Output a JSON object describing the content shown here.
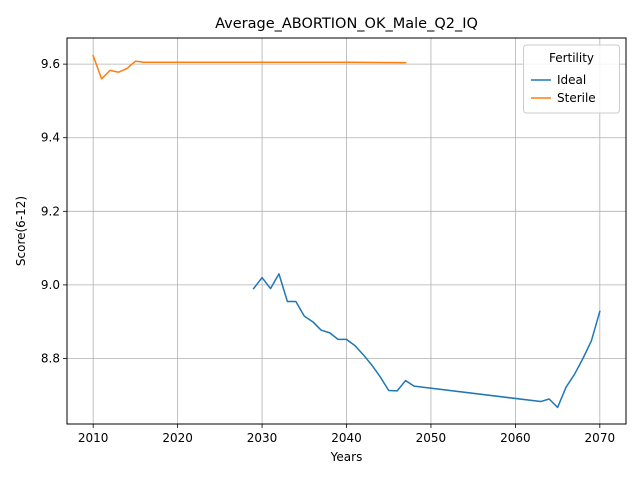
{
  "chart_data": {
    "type": "line",
    "title": "Average_ABORTION_OK_Male_Q2_IQ",
    "xlabel": "Years",
    "ylabel": "Score(6-12)",
    "xlim": [
      2006.9,
      2073.1
    ],
    "ylim": [
      8.622,
      9.671
    ],
    "xticks": [
      2010,
      2020,
      2030,
      2040,
      2050,
      2060,
      2070
    ],
    "yticks": [
      8.8,
      9.0,
      9.2,
      9.4,
      9.6
    ],
    "xtick_labels": [
      "2010",
      "2020",
      "2030",
      "2040",
      "2050",
      "2060",
      "2070"
    ],
    "ytick_labels": [
      "8.8",
      "9.0",
      "9.2",
      "9.4",
      "9.6"
    ],
    "grid": true,
    "legend": {
      "title": "Fertility",
      "position": "top-right"
    },
    "series": [
      {
        "name": "Ideal",
        "color": "#1f77b4",
        "x": [
          2029,
          2030,
          2031,
          2032,
          2033,
          2034,
          2035,
          2036,
          2037,
          2038,
          2039,
          2040,
          2041,
          2042,
          2043,
          2044,
          2045,
          2046,
          2047,
          2048,
          2063,
          2064,
          2065,
          2066,
          2067,
          2068,
          2069,
          2070
        ],
        "y": [
          8.99,
          9.02,
          8.99,
          9.03,
          8.955,
          8.955,
          8.915,
          8.9,
          8.877,
          8.87,
          8.852,
          8.852,
          8.835,
          8.81,
          8.782,
          8.75,
          8.713,
          8.712,
          8.74,
          8.725,
          8.683,
          8.69,
          8.667,
          8.722,
          8.757,
          8.8,
          8.848,
          8.928
        ]
      },
      {
        "name": "Sterile",
        "color": "#ff7f0e",
        "x": [
          2010,
          2011,
          2012,
          2013,
          2014,
          2015,
          2016,
          2017,
          2020,
          2030,
          2040,
          2047
        ],
        "y": [
          9.623,
          9.56,
          9.583,
          9.578,
          9.588,
          9.608,
          9.605,
          9.605,
          9.605,
          9.605,
          9.605,
          9.604
        ]
      }
    ]
  }
}
